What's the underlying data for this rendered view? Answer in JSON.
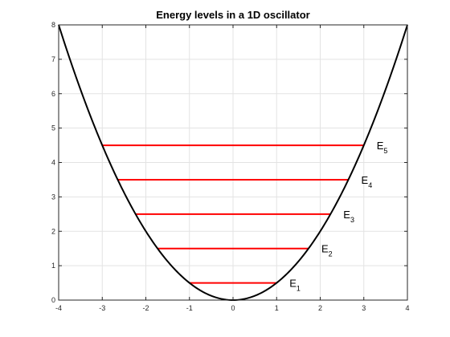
{
  "chart_data": {
    "type": "line",
    "title": "Energy levels in a 1D oscillator",
    "xlabel": "",
    "ylabel": "",
    "xlim": [
      -4,
      4
    ],
    "ylim": [
      0,
      8
    ],
    "grid": true,
    "x_ticks": [
      "-4",
      "-3",
      "-2",
      "-1",
      "0",
      "1",
      "2",
      "3",
      "4"
    ],
    "y_ticks": [
      "0",
      "1",
      "2",
      "3",
      "4",
      "5",
      "6",
      "7",
      "8"
    ],
    "potential": {
      "formula": "y = x^2 / 2",
      "color": "#000000"
    },
    "levels": [
      {
        "base": "E",
        "sub": "1",
        "energy": 0.5,
        "x_range": [
          -1,
          1
        ]
      },
      {
        "base": "E",
        "sub": "2",
        "energy": 1.5,
        "x_range": [
          -1.732,
          1.732
        ]
      },
      {
        "base": "E",
        "sub": "3",
        "energy": 2.5,
        "x_range": [
          -2.236,
          2.236
        ]
      },
      {
        "base": "E",
        "sub": "4",
        "energy": 3.5,
        "x_range": [
          -2.646,
          2.646
        ]
      },
      {
        "base": "E",
        "sub": "5",
        "energy": 4.5,
        "x_range": [
          -3,
          3
        ]
      }
    ],
    "level_color": "#ff0000"
  }
}
